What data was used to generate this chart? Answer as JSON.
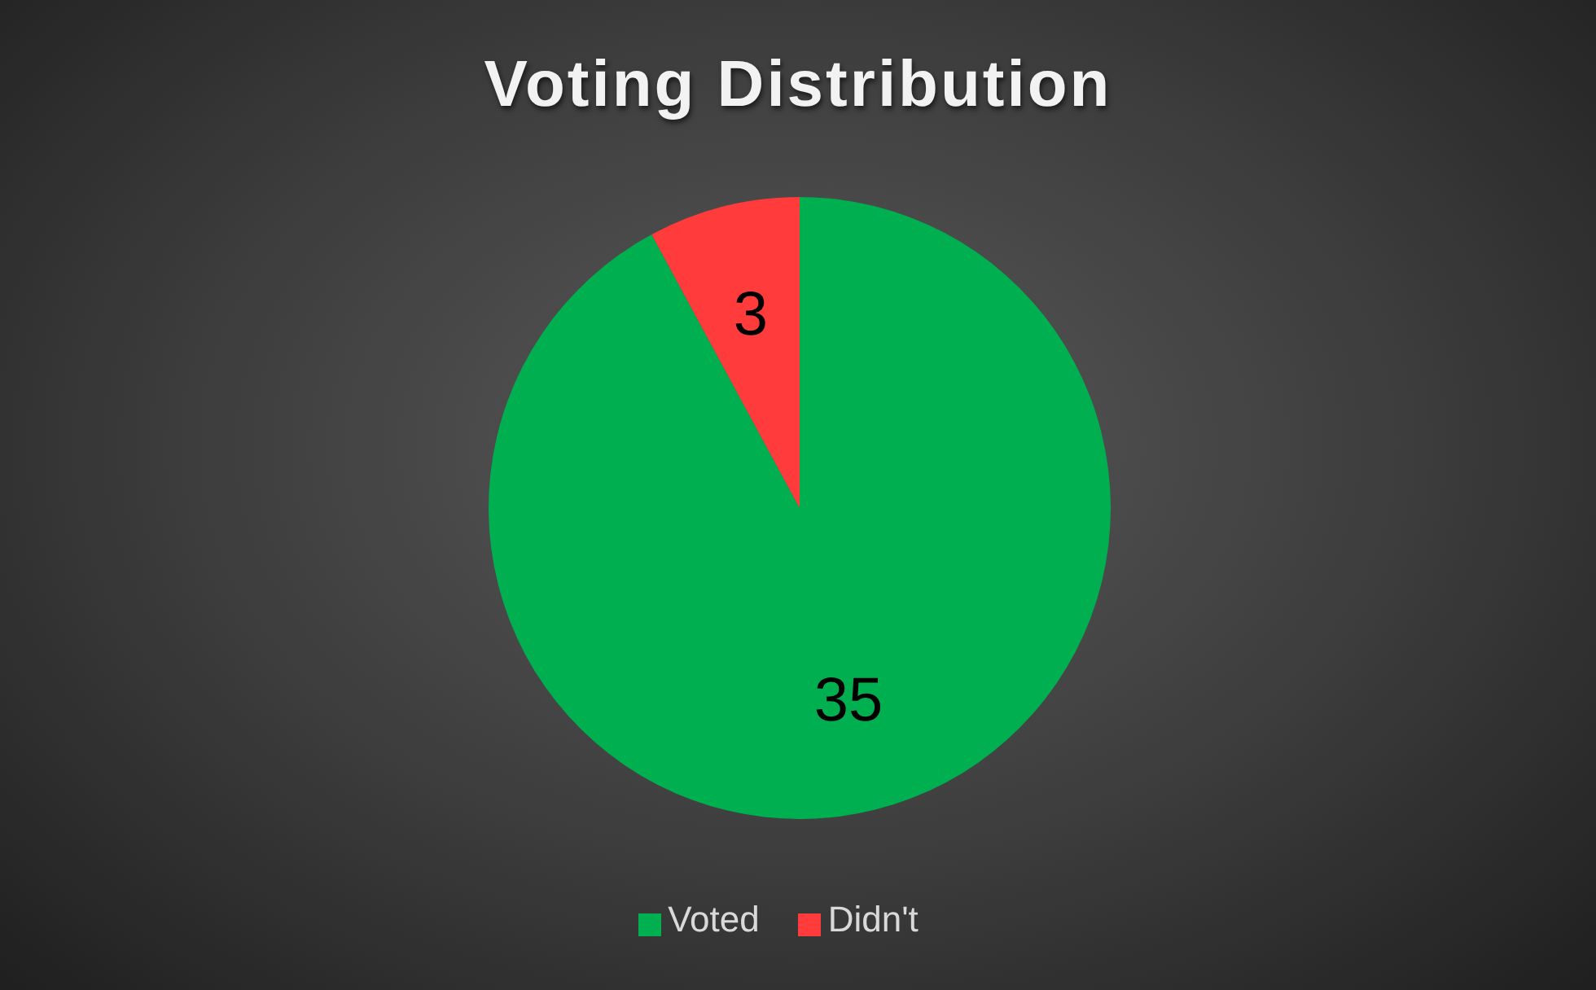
{
  "chart_data": {
    "type": "pie",
    "title": "Voting Distribution",
    "categories": [
      "Voted",
      "Didn't"
    ],
    "values": [
      35,
      3
    ],
    "colors": [
      "#00b050",
      "#ff3b3b"
    ],
    "data_labels": true,
    "legend": "bottom"
  }
}
